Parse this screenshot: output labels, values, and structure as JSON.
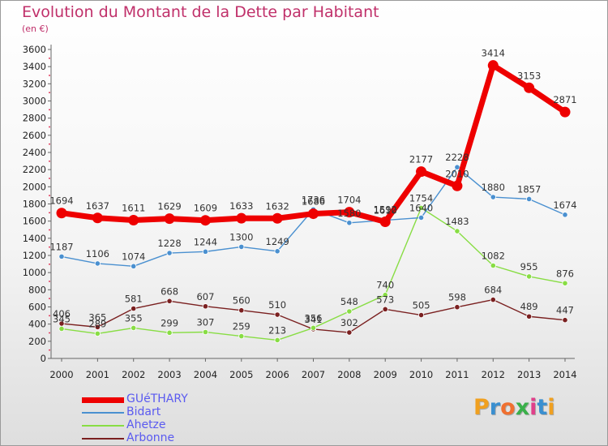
{
  "header": {
    "title": "Evolution du Montant de la Dette par Habitant",
    "unit": "(en €)"
  },
  "chart_data": {
    "type": "line",
    "title": "Evolution du Montant de la Dette par Habitant",
    "subtitle": "(en €)",
    "xlabel": "",
    "ylabel": "",
    "x": [
      "2000",
      "2001",
      "2002",
      "2003",
      "2004",
      "2005",
      "2006",
      "2007",
      "2008",
      "2009",
      "2010",
      "2011",
      "2012",
      "2013",
      "2014"
    ],
    "y_ticks": [
      0,
      200,
      400,
      600,
      800,
      1000,
      1200,
      1400,
      1600,
      1800,
      2000,
      2200,
      2400,
      2600,
      2800,
      3000,
      3200,
      3400,
      3600
    ],
    "ylim": [
      0,
      3600
    ],
    "grid": false,
    "legend_position": "bottom-left",
    "series": [
      {
        "name": "GUéTHARY",
        "color": "#ee0000",
        "values": [
          1694,
          1637,
          1611,
          1629,
          1609,
          1633,
          1632,
          1686,
          1704,
          1592,
          2177,
          2010,
          3414,
          3153,
          2871
        ]
      },
      {
        "name": "Bidart",
        "color": "#4a90d0",
        "values": [
          1187,
          1106,
          1074,
          1228,
          1244,
          1300,
          1249,
          1736,
          1580,
          1610,
          1640,
          2228,
          1880,
          1857,
          1674
        ]
      },
      {
        "name": "Ahetze",
        "color": "#88dd44",
        "values": [
          345,
          289,
          355,
          299,
          307,
          259,
          213,
          356,
          548,
          740,
          1754,
          1483,
          1082,
          955,
          876
        ]
      },
      {
        "name": "Arbonne",
        "color": "#7a2020",
        "values": [
          406,
          365,
          581,
          668,
          607,
          560,
          510,
          341,
          302,
          573,
          505,
          598,
          684,
          489,
          447
        ]
      }
    ]
  },
  "legend": {
    "items": [
      {
        "label": "GUéTHARY",
        "color": "#ee0000"
      },
      {
        "label": "Bidart",
        "color": "#4a90d0"
      },
      {
        "label": "Ahetze",
        "color": "#88dd44"
      },
      {
        "label": "Arbonne",
        "color": "#7a2020"
      }
    ]
  },
  "logo": {
    "text": "Proxiti",
    "colors": [
      "#f0a020",
      "#3a8fd0",
      "#f07030",
      "#3ab04a",
      "#e0408a",
      "#3a8fd0",
      "#f0a020"
    ]
  }
}
